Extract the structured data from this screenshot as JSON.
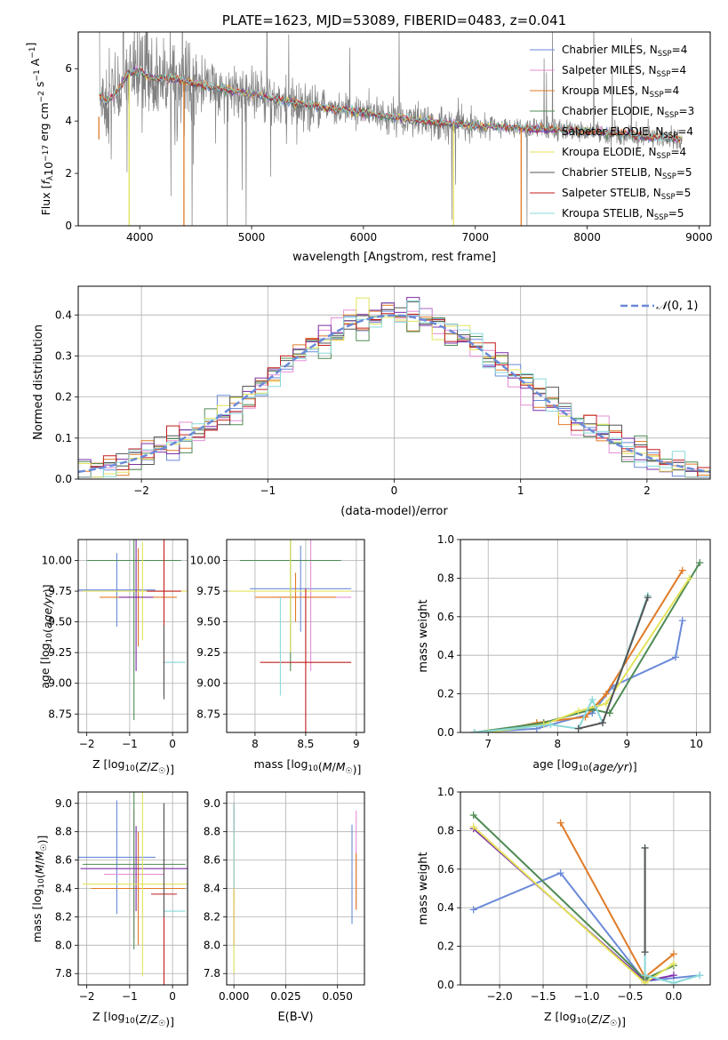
{
  "figure_title": "PLATE=1623, MJD=53089, FIBERID=0483, z=0.041",
  "series": [
    {
      "name": "Chabrier MILES",
      "nssp": "4",
      "color": "#6a8ad8"
    },
    {
      "name": "Salpeter MILES",
      "nssp": "4",
      "color": "#e58fd6"
    },
    {
      "name": "Kroupa MILES",
      "nssp": "4",
      "color": "#e07b27"
    },
    {
      "name": "Chabrier ELODIE",
      "nssp": "3",
      "color": "#4f8b55"
    },
    {
      "name": "Salpeter ELODIE",
      "nssp": "4",
      "color": "#7e2fa8"
    },
    {
      "name": "Kroupa ELODIE",
      "nssp": "4",
      "color": "#e3e35a"
    },
    {
      "name": "Chabrier STELIB",
      "nssp": "5",
      "color": "#555555"
    },
    {
      "name": "Salpeter STELIB",
      "nssp": "5",
      "color": "#c41e1e"
    },
    {
      "name": "Kroupa STELIB",
      "nssp": "5",
      "color": "#8ad8d8"
    }
  ],
  "chart_data": [
    {
      "id": "spectrum",
      "type": "line",
      "title": "PLATE=1623, MJD=53089, FIBERID=0483, z=0.041",
      "xlabel": "wavelength [Angstrom, rest frame]",
      "ylabel": "Flux [f_λ 10^-17 erg cm^-2 s^-1 A^-1]",
      "xlim": [
        3450,
        9100
      ],
      "ylim": [
        0,
        7.4
      ],
      "xticks": [
        4000,
        5000,
        6000,
        7000,
        8000,
        9000
      ],
      "yticks": [
        0,
        2,
        4,
        6
      ],
      "grid": false,
      "legend": "upper right",
      "data_color": "#808080",
      "model_shape": [
        {
          "x": 3640,
          "y": 5.0
        },
        {
          "x": 3700,
          "y": 4.7
        },
        {
          "x": 3800,
          "y": 5.1
        },
        {
          "x": 3900,
          "y": 5.8
        },
        {
          "x": 4000,
          "y": 5.9
        },
        {
          "x": 4100,
          "y": 5.6
        },
        {
          "x": 4300,
          "y": 5.6
        },
        {
          "x": 4500,
          "y": 5.4
        },
        {
          "x": 5000,
          "y": 5.0
        },
        {
          "x": 5500,
          "y": 4.6
        },
        {
          "x": 6000,
          "y": 4.3
        },
        {
          "x": 6500,
          "y": 4.0
        },
        {
          "x": 7000,
          "y": 3.8
        },
        {
          "x": 7500,
          "y": 3.7
        },
        {
          "x": 8000,
          "y": 3.6
        },
        {
          "x": 8500,
          "y": 3.4
        },
        {
          "x": 8850,
          "y": 3.3
        }
      ],
      "model_dropouts": [
        {
          "x": 3635,
          "color": "#e07b27",
          "y": 4.2
        },
        {
          "x": 3905,
          "color": "#e3e35a",
          "y": 0
        },
        {
          "x": 4395,
          "color": "#e07b27",
          "y": 0
        },
        {
          "x": 6805,
          "color": "#e3e35a",
          "y": 0
        },
        {
          "x": 7410,
          "color": "#e07b27",
          "y": 0
        }
      ]
    },
    {
      "id": "residuals",
      "type": "histogram",
      "xlabel": "(data-model)/error",
      "ylabel": "Normed distribution",
      "xlim": [
        -2.5,
        2.5
      ],
      "ylim": [
        0,
        0.47
      ],
      "xticks": [
        -2,
        -1,
        0,
        1,
        2
      ],
      "yticks": [
        0.0,
        0.1,
        0.2,
        0.3,
        0.4
      ],
      "grid": true,
      "legend": "upper right",
      "reference_curve": {
        "name": "N(0,1)",
        "color": "#6a8ad8",
        "style": "dashed"
      },
      "bin_edges_start": -2.5,
      "bin_width": 0.1
    },
    {
      "id": "age_vs_Z",
      "type": "errorbar",
      "xlabel": "Z [log10(Z/Z☉)]",
      "ylabel": "age  [log10(age/yr)]",
      "xlim": [
        -2.2,
        0.35
      ],
      "ylim": [
        8.6,
        10.17
      ],
      "xticks": [
        -2,
        -1,
        0
      ],
      "yticks": [
        8.75,
        9.0,
        9.25,
        9.5,
        9.75,
        10.0
      ],
      "grid": true,
      "points": [
        {
          "series": 0,
          "x": -1.3,
          "y": 9.76,
          "xerr": 0.9,
          "yerr": 0.3
        },
        {
          "series": 2,
          "x": -0.8,
          "y": 9.7,
          "xerr": 0.9,
          "yerr": 0.4
        },
        {
          "series": 3,
          "x": -0.9,
          "y": 10.0,
          "xerr": 1.1,
          "yerr": 1.3
        },
        {
          "series": 5,
          "x": -0.7,
          "y": 9.75,
          "xerr": 1.4,
          "yerr": 0.4
        },
        {
          "series": 4,
          "x": -0.85,
          "y": 9.7,
          "xerr": 0.4,
          "yerr": 0.6
        },
        {
          "series": 7,
          "x": -0.2,
          "y": 9.75,
          "xerr": 0.4,
          "yerr": 0.85
        },
        {
          "series": 8,
          "x": 0.05,
          "y": 9.17,
          "xerr": 0.25,
          "yerr": 0.0
        },
        {
          "series": 6,
          "x": -0.2,
          "y": 9.17,
          "xerr": 0.0,
          "yerr": 0.3
        }
      ]
    },
    {
      "id": "age_vs_mass",
      "type": "errorbar",
      "xlabel": "mass [log10(M/M☉)]",
      "ylabel": "",
      "xlim": [
        7.72,
        9.08
      ],
      "ylim": [
        8.6,
        10.17
      ],
      "xticks": [
        8.0,
        8.5,
        9.0
      ],
      "yticks": [
        8.75,
        9.0,
        9.25,
        9.5,
        9.75,
        10.0
      ],
      "grid": true,
      "points": [
        {
          "series": 0,
          "x": 8.45,
          "y": 9.77,
          "xerr": 0.5,
          "yerr": 0.35
        },
        {
          "series": 1,
          "x": 8.55,
          "y": 9.7,
          "xerr": 0.4,
          "yerr": 0.6
        },
        {
          "series": 2,
          "x": 8.4,
          "y": 9.7,
          "xerr": 0.4,
          "yerr": 0.2
        },
        {
          "series": 3,
          "x": 8.35,
          "y": 10.0,
          "xerr": 0.5,
          "yerr": 0.9
        },
        {
          "series": 5,
          "x": 8.35,
          "y": 9.75,
          "xerr": 0.6,
          "yerr": 0.5
        },
        {
          "series": 7,
          "x": 8.5,
          "y": 9.17,
          "xerr": 0.45,
          "yerr": 0.6
        },
        {
          "series": 8,
          "x": 8.25,
          "y": 9.3,
          "xerr": 0.0,
          "yerr": 0.4
        }
      ]
    },
    {
      "id": "weight_vs_age",
      "type": "line",
      "xlabel": "age  [log10(age/yr)]",
      "ylabel": "mass weight",
      "xlim": [
        6.6,
        10.2
      ],
      "ylim": [
        0,
        1.0
      ],
      "xticks": [
        7,
        8,
        9,
        10
      ],
      "yticks": [
        0.0,
        0.2,
        0.4,
        0.6,
        0.8,
        1.0
      ],
      "grid": true,
      "lines": [
        {
          "series": 0,
          "x": [
            6.8,
            7.7,
            8.5,
            8.8,
            9.7,
            9.8
          ],
          "y": [
            0.0,
            0.02,
            0.1,
            0.24,
            0.39,
            0.58
          ]
        },
        {
          "series": 2,
          "x": [
            7.0,
            7.7,
            8.4,
            8.7,
            9.8
          ],
          "y": [
            0.0,
            0.05,
            0.08,
            0.2,
            0.84
          ]
        },
        {
          "series": 3,
          "x": [
            6.8,
            7.8,
            8.5,
            8.75,
            10.05
          ],
          "y": [
            0.0,
            0.05,
            0.12,
            0.1,
            0.88
          ]
        },
        {
          "series": 5,
          "x": [
            7.0,
            7.8,
            8.3,
            8.7,
            9.9
          ],
          "y": [
            0.0,
            0.04,
            0.11,
            0.15,
            0.8
          ]
        },
        {
          "series": 8,
          "x": [
            6.8,
            7.9,
            8.3,
            8.5,
            8.65,
            9.3
          ],
          "y": [
            0.0,
            0.04,
            0.02,
            0.17,
            0.05,
            0.71
          ]
        },
        {
          "series": 6,
          "x": [
            8.3,
            8.65,
            9.3
          ],
          "y": [
            0.02,
            0.05,
            0.7
          ]
        }
      ]
    },
    {
      "id": "mass_vs_Z",
      "type": "errorbar",
      "xlabel": "Z [log10(Z/Z☉)]",
      "ylabel": "mass [log10(M/M☉)]",
      "xlim": [
        -2.2,
        0.35
      ],
      "ylim": [
        7.72,
        9.08
      ],
      "xticks": [
        -2,
        -1,
        0
      ],
      "yticks": [
        7.8,
        8.0,
        8.2,
        8.4,
        8.6,
        8.8,
        9.0
      ],
      "grid": true,
      "points": [
        {
          "series": 0,
          "x": -1.3,
          "y": 8.62,
          "xerr": 0.9,
          "yerr": 0.4
        },
        {
          "series": 1,
          "x": -0.9,
          "y": 8.5,
          "xerr": 0.7,
          "yerr": 0.45
        },
        {
          "series": 2,
          "x": -0.8,
          "y": 8.4,
          "xerr": 1.1,
          "yerr": 0.4
        },
        {
          "series": 3,
          "x": -0.9,
          "y": 8.57,
          "xerr": 1.2,
          "yerr": 0.6
        },
        {
          "series": 4,
          "x": -0.85,
          "y": 8.54,
          "xerr": 1.3,
          "yerr": 0.3
        },
        {
          "series": 5,
          "x": -0.7,
          "y": 8.43,
          "xerr": 1.4,
          "yerr": 0.65
        },
        {
          "series": 7,
          "x": -0.2,
          "y": 8.36,
          "xerr": 0.3,
          "yerr": 0.64
        },
        {
          "series": 8,
          "x": 0.05,
          "y": 8.24,
          "xerr": 0.25,
          "yerr": 0.0
        },
        {
          "series": 6,
          "x": -0.2,
          "y": 8.6,
          "xerr": 0.0,
          "yerr": 0.4
        }
      ]
    },
    {
      "id": "mass_vs_ebv",
      "type": "errorbar",
      "xlabel": "E(B-V)",
      "ylabel": "",
      "xlim": [
        -0.0035,
        0.063
      ],
      "ylim": [
        7.72,
        9.08
      ],
      "xticks": [
        0.0,
        0.025,
        0.05
      ],
      "xticklabels": [
        "0.000",
        "0.025",
        "0.050"
      ],
      "yticks": [
        7.8,
        8.0,
        8.2,
        8.4,
        8.6,
        8.8,
        9.0
      ],
      "grid": true,
      "points": [
        {
          "series": 7,
          "x": 0.0,
          "y": 8.5,
          "xerr": 0.0,
          "yerr": 0.5
        },
        {
          "series": 5,
          "x": 0.0,
          "y": 8.3,
          "xerr": 0.0,
          "yerr": 0.5
        },
        {
          "series": 8,
          "x": 0.0,
          "y": 8.7,
          "xerr": 0.0,
          "yerr": 0.3
        },
        {
          "series": 0,
          "x": 0.057,
          "y": 8.5,
          "xerr": 0.0,
          "yerr": 0.35
        },
        {
          "series": 1,
          "x": 0.059,
          "y": 8.6,
          "xerr": 0.0,
          "yerr": 0.35
        },
        {
          "series": 2,
          "x": 0.059,
          "y": 8.45,
          "xerr": 0.0,
          "yerr": 0.2
        }
      ]
    },
    {
      "id": "weight_vs_Z",
      "type": "line",
      "xlabel": "Z [log10(Z/Z☉)]",
      "ylabel": "mass weight",
      "xlim": [
        -2.45,
        0.42
      ],
      "ylim": [
        0,
        1.0
      ],
      "xticks": [
        -2.0,
        -1.5,
        -1.0,
        -0.5,
        0.0
      ],
      "xticklabels": [
        "−2.0",
        "−1.5",
        "−1.0",
        "−0.5",
        "0.0"
      ],
      "yticks": [
        0.0,
        0.2,
        0.4,
        0.6,
        0.8,
        1.0
      ],
      "grid": true,
      "lines": [
        {
          "series": 0,
          "x": [
            -2.3,
            -1.3,
            -0.33,
            0.3
          ],
          "y": [
            0.39,
            0.58,
            0.02,
            0.05
          ]
        },
        {
          "series": 2,
          "x": [
            -1.3,
            -0.33,
            0.0
          ],
          "y": [
            0.84,
            0.04,
            0.16
          ]
        },
        {
          "series": 4,
          "x": [
            -2.3,
            -0.33,
            0.0
          ],
          "y": [
            0.81,
            0.02,
            0.05
          ]
        },
        {
          "series": 3,
          "x": [
            -2.3,
            -0.33,
            0.0
          ],
          "y": [
            0.88,
            0.03,
            0.1
          ]
        },
        {
          "series": 5,
          "x": [
            -2.3,
            -0.33,
            0.0
          ],
          "y": [
            0.82,
            0.01,
            0.11
          ]
        },
        {
          "series": 8,
          "x": [
            -0.33,
            -0.33,
            0.0,
            0.3
          ],
          "y": [
            0.71,
            0.05,
            0.01,
            0.05
          ]
        },
        {
          "series": 6,
          "x": [
            -0.33,
            -0.33
          ],
          "y": [
            0.71,
            0.17
          ]
        }
      ]
    }
  ]
}
